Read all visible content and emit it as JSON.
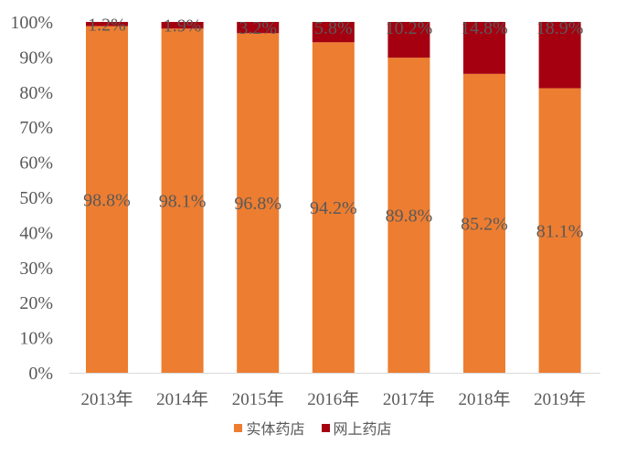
{
  "chart_data": {
    "type": "bar",
    "stacked": true,
    "title": "",
    "xlabel": "",
    "ylabel": "",
    "ylim": [
      0,
      100
    ],
    "yticks": [
      "0%",
      "10%",
      "20%",
      "30%",
      "40%",
      "50%",
      "60%",
      "70%",
      "80%",
      "90%",
      "100%"
    ],
    "categories": [
      "2013年",
      "2014年",
      "2015年",
      "2016年",
      "2017年",
      "2018年",
      "2019年"
    ],
    "series": [
      {
        "name": "实体药店",
        "color": "#ED7D31",
        "values": [
          98.8,
          98.1,
          96.8,
          94.2,
          89.8,
          85.2,
          81.1
        ],
        "labels": [
          "98.8%",
          "98.1%",
          "96.8%",
          "94.2%",
          "89.8%",
          "85.2%",
          "81.1%"
        ]
      },
      {
        "name": "网上药店",
        "color": "#A50010",
        "values": [
          1.2,
          1.9,
          3.2,
          5.8,
          10.2,
          14.8,
          18.9
        ],
        "labels": [
          "1.2%",
          "1.9%",
          "3.2%",
          "5.8%",
          "10.2%",
          "14.8%",
          "18.9%"
        ]
      }
    ],
    "legend": "bottom",
    "grid": false
  }
}
